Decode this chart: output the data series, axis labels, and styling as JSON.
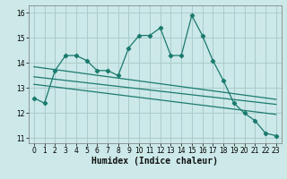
{
  "xlabel": "Humidex (Indice chaleur)",
  "bg_color": "#cce8e8",
  "grid_color": "#aacccc",
  "line_color": "#1a7a6e",
  "x_data": [
    0,
    1,
    2,
    3,
    4,
    5,
    6,
    7,
    8,
    9,
    10,
    11,
    12,
    13,
    14,
    15,
    16,
    17,
    18,
    19,
    20,
    21,
    22,
    23
  ],
  "y_main": [
    12.6,
    12.4,
    13.7,
    14.3,
    14.3,
    14.1,
    13.7,
    13.7,
    13.5,
    14.6,
    15.1,
    15.1,
    15.4,
    14.3,
    14.3,
    15.9,
    15.1,
    14.1,
    13.3,
    12.4,
    12.0,
    11.7,
    11.2,
    11.1
  ],
  "ylim": [
    10.8,
    16.3
  ],
  "xlim": [
    -0.5,
    23.5
  ],
  "yticks": [
    11,
    12,
    13,
    14,
    15,
    16
  ],
  "xticks": [
    0,
    1,
    2,
    3,
    4,
    5,
    6,
    7,
    8,
    9,
    10,
    11,
    12,
    13,
    14,
    15,
    16,
    17,
    18,
    19,
    20,
    21,
    22,
    23
  ],
  "reg_line1": [
    13.85,
    12.55
  ],
  "reg_line2": [
    13.45,
    12.35
  ],
  "reg_line3": [
    13.15,
    11.95
  ],
  "xlabel_fontsize": 7,
  "tick_fontsize": 5.5
}
